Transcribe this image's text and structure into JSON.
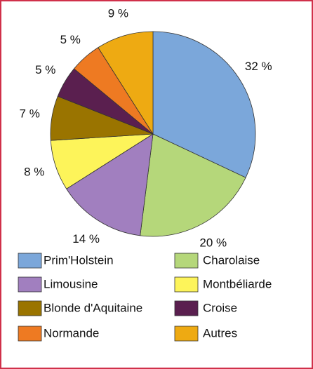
{
  "chart_data": {
    "type": "pie",
    "categories": [
      "Prim'Holstein",
      "Charolaise",
      "Limousine",
      "Montbéliarde",
      "Blonde d'Aquitaine",
      "Croise",
      "Normande",
      "Autres"
    ],
    "values": [
      32,
      20,
      14,
      8,
      7,
      5,
      5,
      9
    ],
    "value_labels": [
      "32 %",
      "20 %",
      "14 %",
      "8 %",
      "7 %",
      "5 %",
      "5 %",
      "9 %"
    ],
    "colors": [
      "#7ba7da",
      "#b5d77a",
      "#a17fbf",
      "#fdf45a",
      "#9a7400",
      "#5a1f4f",
      "#ee7a22",
      "#eeaa12"
    ],
    "legend": "bottom"
  }
}
